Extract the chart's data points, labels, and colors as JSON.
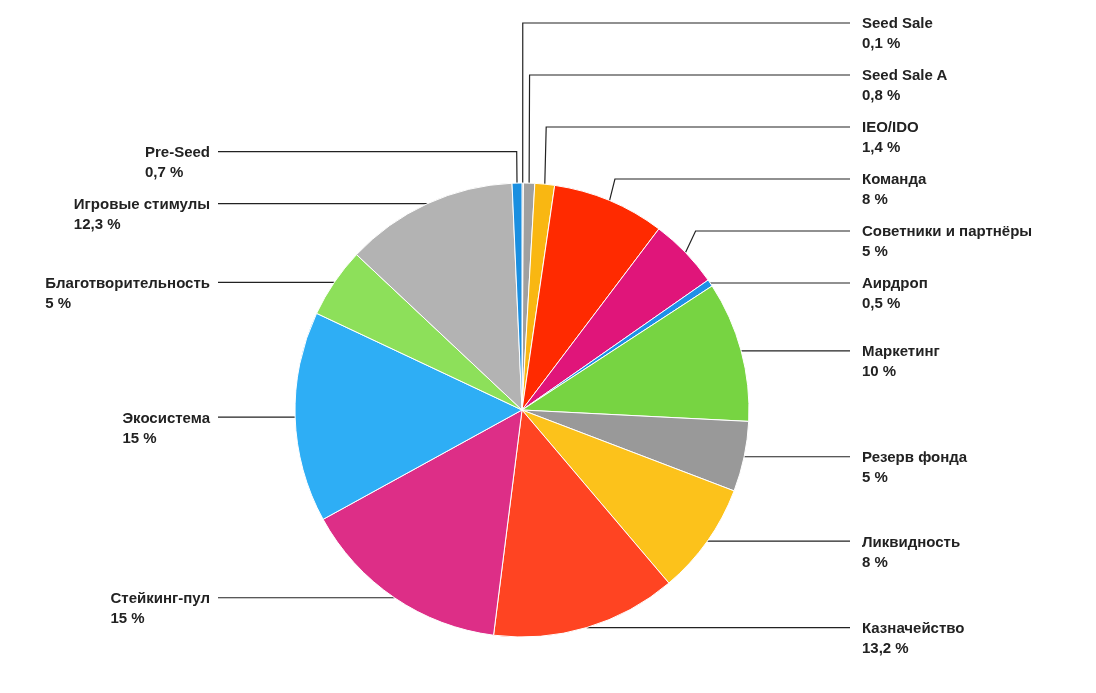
{
  "chart_data": {
    "type": "pie",
    "categories": [
      "Seed Sale",
      "Seed Sale A",
      "IEO/IDO",
      "Команда",
      "Советники и партнёры",
      "Аирдроп",
      "Маркетинг",
      "Резерв фонда",
      "Ликвидность",
      "Казначейство",
      "Стейкинг-пул",
      "Экосистема",
      "Благотворительность",
      "Игровые стимулы",
      "Pre-Seed"
    ],
    "values": [
      0.1,
      0.8,
      1.4,
      8,
      5,
      0.5,
      10,
      5,
      8,
      13.2,
      15,
      15,
      5,
      12.3,
      0.7
    ],
    "value_labels": [
      "0,1 %",
      "0,8 %",
      "1,4 %",
      "8 %",
      "5 %",
      "0,5 %",
      "10 %",
      "5 %",
      "8 %",
      "13,2 %",
      "15 %",
      "15 %",
      "5 %",
      "12,3 %",
      "0,7 %"
    ],
    "colors": [
      "#7a7a7a",
      "#a0a0a0",
      "#f9b712",
      "#ff2a00",
      "#e0157a",
      "#1e90e8",
      "#77d442",
      "#999999",
      "#fcc21b",
      "#ff4422",
      "#dd2e87",
      "#2eaef5",
      "#8de05a",
      "#b3b3b3",
      "#1a8fe0"
    ],
    "legend": false
  }
}
